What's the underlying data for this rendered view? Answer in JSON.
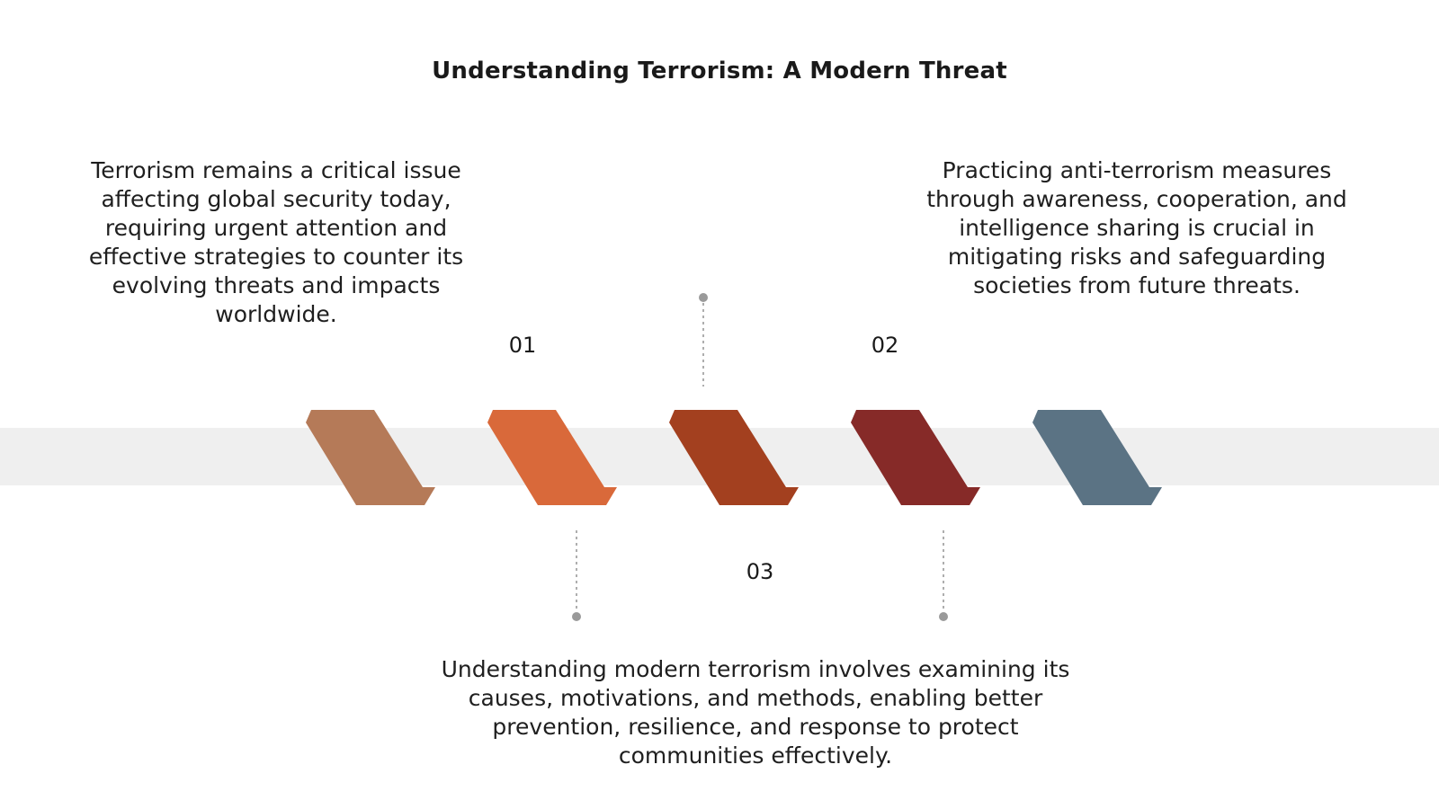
{
  "title": "Understanding Terrorism: A Modern Threat",
  "steps": [
    {
      "label": "01",
      "text": "Terrorism remains a critical issue affecting global security today, requiring urgent attention and effective strategies to counter its evolving threats and impacts worldwide."
    },
    {
      "label": "02",
      "text": "Practicing anti-terrorism measures through awareness, cooperation, and intelligence sharing is crucial in mitigating risks and safeguarding societies from future threats."
    },
    {
      "label": "03",
      "text": "Understanding modern terrorism involves examining its causes, motivations, and methods, enabling better prevention, resilience, and response to protect communities effectively."
    }
  ],
  "colors": {
    "band": "#efefef",
    "connector": "#9a9a9a",
    "chevrons": [
      "#b57a58",
      "#d9693a",
      "#a3401f",
      "#862a28",
      "#5b7384"
    ]
  }
}
